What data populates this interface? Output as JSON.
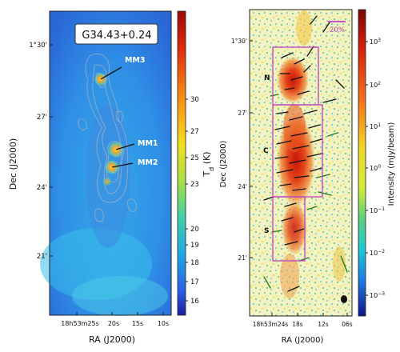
{
  "left_panel": {
    "title": "G34.43+0.24",
    "sources": [
      "MM3",
      "MM1",
      "MM2"
    ],
    "colorbar": {
      "label": "T_d (K)",
      "ticks": [
        "30",
        "27",
        "25",
        "23",
        "20",
        "19",
        "18",
        "17",
        "16"
      ]
    },
    "y_ticks": [
      "1°30'",
      "27'",
      "24'",
      "21'"
    ],
    "x_ticks": [
      "18h53m25s",
      "20s",
      "15s",
      "10s"
    ],
    "xlabel": "RA (J2000)",
    "ylabel": "Dec (J2000)"
  },
  "right_panel": {
    "scale_bar_label": "20%",
    "regions": [
      "N",
      "C",
      "S"
    ],
    "colorbar": {
      "label": "Intensity (mJy/beam)",
      "ticks": [
        "10^3",
        "10^2",
        "10^1",
        "10^0",
        "10^-1",
        "10^-2",
        "10^-3"
      ]
    },
    "y_ticks": [
      "1°30'",
      "27'",
      "24'",
      "21'"
    ],
    "x_ticks": [
      "18h53m24s",
      "18s",
      "12s",
      "06s"
    ],
    "xlabel": "RA (J2000)",
    "ylabel": "Dec (J2000)"
  },
  "colors": {
    "frame": "#222222",
    "magenta": "#c040c0",
    "vector": "#111111",
    "vector_green": "#1e7a1e"
  }
}
